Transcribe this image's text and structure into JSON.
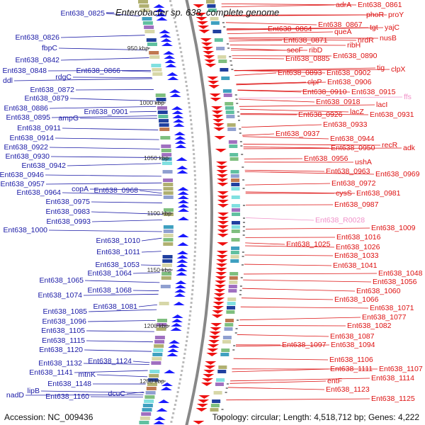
{
  "title": "Enterobacter sp. 638, complete genome",
  "footer": {
    "accession": "Accession: NC_009436",
    "summary": "Topology: circular; Length: 4,518,712 bp; Genes: 4,222"
  },
  "colors": {
    "left_label": "#1a1aa6",
    "right_label": "#dd1111",
    "rna_label": "#f090c8",
    "forward_arrows": "#1a1aff",
    "reverse_arrows": "#ee1111",
    "backbone": "#888888"
  },
  "ticks": [
    "950 kbp",
    "1000 kbp",
    "1050 kbp",
    "1100 kbp",
    "1150 kbp",
    "1200 kbp",
    "1250 kbp"
  ],
  "left_labels": [
    "Ent638_0825",
    "Ent638_0826",
    "fbpC",
    "Ent638_0842",
    "Ent638_0848",
    "ddl",
    "rdgC",
    "Ent638_0866",
    "Ent638_0872",
    "Ent638_0879",
    "Ent638_0886",
    "Ent638_0895",
    "ampG",
    "Ent638_0901",
    "Ent638_0911",
    "Ent638_0914",
    "Ent638_0922",
    "Ent638_0930",
    "Ent638_0942",
    "Ent638_0946",
    "Ent638_0957",
    "Ent638_0964",
    "copA",
    "Ent638_0968",
    "Ent638_0975",
    "Ent638_0983",
    "Ent638_0993",
    "Ent638_1000",
    "Ent638_1010",
    "Ent638_1011",
    "Ent638_1053",
    "Ent638_1064",
    "Ent638_1065",
    "Ent638_1068",
    "Ent638_1074",
    "Ent638_1081",
    "Ent638_1085",
    "Ent638_1096",
    "Ent638_1105",
    "Ent638_1115",
    "Ent638_1120",
    "Ent638_1124",
    "Ent638_1132",
    "Ent638_1141",
    "mtnK",
    "Ent638_1148",
    "lipB",
    "nadD",
    "Ent638_1160",
    "dcuC"
  ],
  "right_labels": [
    "adrA",
    "Ent638_0861",
    "phoR",
    "proY",
    "Ent638_0867",
    "tgt",
    "yajC",
    "Ent638_0864",
    "queA",
    "nusB",
    "Ent638_0871",
    "nrdR",
    "ribH",
    "secF",
    "ribD",
    "Ent638_0885",
    "Ent638_0890",
    "tig",
    "clpX",
    "Ent638_0893",
    "Ent638_0902",
    "clpP",
    "Ent638_0906",
    "Ent638_0910",
    "Ent638_0915",
    "Ent638_0918",
    "lacI",
    "lacZ",
    "Ent638_0926",
    "Ent638_0931",
    "Ent638_0933",
    "Ent638_0937",
    "Ent638_0944",
    "recR",
    "Ent638_0950",
    "adk",
    "Ent638_0956",
    "ushA",
    "Ent638_0963",
    "Ent638_0969",
    "Ent638_0972",
    "cysS",
    "Ent638_0981",
    "Ent638_0987",
    "Ent638_1009",
    "Ent638_1016",
    "Ent638_1025",
    "Ent638_1026",
    "Ent638_1033",
    "Ent638_1041",
    "Ent638_1048",
    "Ent638_1056",
    "Ent638_1060",
    "Ent638_1066",
    "Ent638_1071",
    "Ent638_1077",
    "Ent638_1082",
    "Ent638_1087",
    "Ent638_1097",
    "Ent638_1094",
    "Ent638_1106",
    "Ent638_1111",
    "Ent638_1107",
    "Ent638_1114",
    "entF",
    "Ent638_1123",
    "Ent638_1125"
  ],
  "rna_labels": [
    "ffs",
    "Ent638_R0028"
  ]
}
